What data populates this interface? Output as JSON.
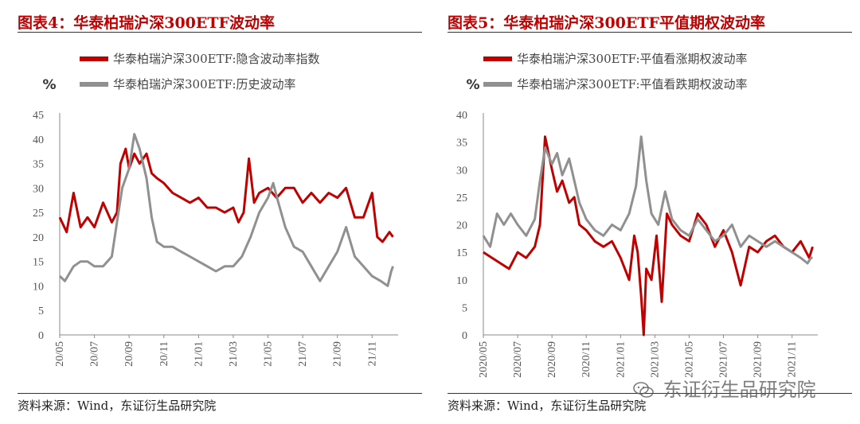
{
  "figures": [
    {
      "title": "图表4：华泰柏瑞沪深300ETF波动率",
      "source": "资料来源：Wind，东证衍生品研究院"
    },
    {
      "title": "图表5：华泰柏瑞沪深300ETF平值期权波动率",
      "source": "资料来源：Wind，东证衍生品研究院"
    }
  ],
  "watermark": {
    "text": "东证衍生品研究院",
    "icon": "wechat-icon"
  },
  "chart_data": [
    {
      "type": "line",
      "title": "图表4：华泰柏瑞沪深300ETF波动率",
      "ylabel": "%",
      "ylim": [
        0,
        45
      ],
      "yticks": [
        "0",
        "5",
        "10",
        "15",
        "20",
        "25",
        "30",
        "35",
        "40",
        "45"
      ],
      "xticks": [
        "20/05",
        "20/07",
        "20/09",
        "20/11",
        "21/01",
        "21/03",
        "21/05",
        "21/07",
        "21/09",
        "21/11"
      ],
      "xrange": [
        0,
        19.5
      ],
      "legend_position": "top",
      "series": [
        {
          "name": "华泰柏瑞沪深300ETF:隐含波动率指数",
          "color": "#c00000",
          "points": [
            [
              0,
              24
            ],
            [
              0.4,
              21
            ],
            [
              0.8,
              29
            ],
            [
              1.2,
              22
            ],
            [
              1.6,
              24
            ],
            [
              2,
              22
            ],
            [
              2.5,
              27
            ],
            [
              3,
              23
            ],
            [
              3.3,
              25
            ],
            [
              3.5,
              35
            ],
            [
              3.8,
              38
            ],
            [
              4,
              34
            ],
            [
              4.3,
              37
            ],
            [
              4.6,
              35
            ],
            [
              5,
              37
            ],
            [
              5.3,
              33
            ],
            [
              5.6,
              32
            ],
            [
              6,
              31
            ],
            [
              6.5,
              29
            ],
            [
              7,
              28
            ],
            [
              7.5,
              27
            ],
            [
              8,
              28
            ],
            [
              8.5,
              26
            ],
            [
              9,
              26
            ],
            [
              9.5,
              25
            ],
            [
              10,
              26
            ],
            [
              10.3,
              23
            ],
            [
              10.6,
              25
            ],
            [
              10.9,
              36
            ],
            [
              11.2,
              27
            ],
            [
              11.5,
              29
            ],
            [
              12,
              30
            ],
            [
              12.5,
              28
            ],
            [
              13,
              30
            ],
            [
              13.5,
              30
            ],
            [
              14,
              27
            ],
            [
              14.5,
              29
            ],
            [
              15,
              27
            ],
            [
              15.5,
              29
            ],
            [
              16,
              28
            ],
            [
              16.5,
              30
            ],
            [
              17,
              24
            ],
            [
              17.5,
              24
            ],
            [
              18,
              29
            ],
            [
              18.3,
              20
            ],
            [
              18.6,
              19
            ],
            [
              19,
              21
            ],
            [
              19.2,
              20
            ]
          ]
        },
        {
          "name": "华泰柏瑞沪深300ETF:历史波动率",
          "color": "#909090",
          "points": [
            [
              0,
              12
            ],
            [
              0.3,
              11
            ],
            [
              0.8,
              14
            ],
            [
              1.2,
              15
            ],
            [
              1.6,
              15
            ],
            [
              2,
              14
            ],
            [
              2.5,
              14
            ],
            [
              3,
              16
            ],
            [
              3.3,
              23
            ],
            [
              3.6,
              30
            ],
            [
              4,
              34
            ],
            [
              4.3,
              41
            ],
            [
              4.6,
              38
            ],
            [
              5,
              32
            ],
            [
              5.3,
              24
            ],
            [
              5.6,
              19
            ],
            [
              6,
              18
            ],
            [
              6.5,
              18
            ],
            [
              7,
              17
            ],
            [
              7.5,
              16
            ],
            [
              8,
              15
            ],
            [
              8.5,
              14
            ],
            [
              9,
              13
            ],
            [
              9.5,
              14
            ],
            [
              10,
              14
            ],
            [
              10.5,
              16
            ],
            [
              11,
              20
            ],
            [
              11.5,
              25
            ],
            [
              12,
              28
            ],
            [
              12.3,
              31
            ],
            [
              12.6,
              27
            ],
            [
              13,
              22
            ],
            [
              13.5,
              18
            ],
            [
              14,
              17
            ],
            [
              14.5,
              14
            ],
            [
              15,
              11
            ],
            [
              15.5,
              14
            ],
            [
              16,
              17
            ],
            [
              16.5,
              22
            ],
            [
              17,
              16
            ],
            [
              17.5,
              14
            ],
            [
              18,
              12
            ],
            [
              18.5,
              11
            ],
            [
              18.9,
              10
            ],
            [
              19.1,
              13
            ],
            [
              19.2,
              14
            ]
          ]
        }
      ]
    },
    {
      "type": "line",
      "title": "图表5：华泰柏瑞沪深300ETF平值期权波动率",
      "ylabel": "%",
      "ylim": [
        0,
        40
      ],
      "yticks": [
        "0",
        "5",
        "10",
        "15",
        "20",
        "25",
        "30",
        "35",
        "40"
      ],
      "xticks": [
        "2020/05",
        "2020/07",
        "2020/09",
        "2020/11",
        "2021/01",
        "2021/03",
        "2021/05",
        "2021/07",
        "2021/09",
        "2021/11"
      ],
      "xrange": [
        0,
        19.5
      ],
      "legend_position": "top",
      "series": [
        {
          "name": "华泰柏瑞沪深300ETF:平值看涨期权波动率",
          "color": "#c00000",
          "points": [
            [
              0,
              15
            ],
            [
              0.5,
              14
            ],
            [
              1,
              13
            ],
            [
              1.5,
              12
            ],
            [
              2,
              15
            ],
            [
              2.5,
              14
            ],
            [
              3,
              16
            ],
            [
              3.3,
              20
            ],
            [
              3.6,
              36
            ],
            [
              4,
              30
            ],
            [
              4.3,
              26
            ],
            [
              4.6,
              28
            ],
            [
              5,
              24
            ],
            [
              5.3,
              25
            ],
            [
              5.6,
              20
            ],
            [
              6,
              19
            ],
            [
              6.5,
              17
            ],
            [
              7,
              16
            ],
            [
              7.5,
              17
            ],
            [
              8,
              14
            ],
            [
              8.5,
              10
            ],
            [
              8.8,
              18
            ],
            [
              9,
              15
            ],
            [
              9.2,
              7
            ],
            [
              9.35,
              0
            ],
            [
              9.5,
              12
            ],
            [
              9.8,
              10
            ],
            [
              10.1,
              18
            ],
            [
              10.4,
              6
            ],
            [
              10.7,
              22
            ],
            [
              11,
              20
            ],
            [
              11.5,
              18
            ],
            [
              12,
              17
            ],
            [
              12.5,
              22
            ],
            [
              13,
              20
            ],
            [
              13.5,
              16
            ],
            [
              14,
              19
            ],
            [
              14.5,
              15
            ],
            [
              15,
              9
            ],
            [
              15.5,
              16
            ],
            [
              16,
              15
            ],
            [
              16.5,
              17
            ],
            [
              17,
              18
            ],
            [
              17.5,
              16
            ],
            [
              18,
              15
            ],
            [
              18.5,
              17
            ],
            [
              19,
              14
            ],
            [
              19.2,
              16
            ]
          ]
        },
        {
          "name": "华泰柏瑞沪深300ETF:平值看跌期权波动率",
          "color": "#909090",
          "points": [
            [
              0,
              18
            ],
            [
              0.4,
              16
            ],
            [
              0.8,
              22
            ],
            [
              1.2,
              20
            ],
            [
              1.6,
              22
            ],
            [
              2,
              20
            ],
            [
              2.5,
              18
            ],
            [
              3,
              21
            ],
            [
              3.3,
              28
            ],
            [
              3.6,
              34
            ],
            [
              4,
              31
            ],
            [
              4.3,
              33
            ],
            [
              4.6,
              29
            ],
            [
              5,
              32
            ],
            [
              5.3,
              28
            ],
            [
              5.6,
              24
            ],
            [
              6,
              21
            ],
            [
              6.5,
              19
            ],
            [
              7,
              18
            ],
            [
              7.5,
              20
            ],
            [
              8,
              19
            ],
            [
              8.5,
              22
            ],
            [
              8.9,
              27
            ],
            [
              9.2,
              36
            ],
            [
              9.5,
              28
            ],
            [
              9.8,
              22
            ],
            [
              10.2,
              20
            ],
            [
              10.6,
              26
            ],
            [
              11,
              21
            ],
            [
              11.5,
              19
            ],
            [
              12,
              18
            ],
            [
              12.5,
              21
            ],
            [
              13,
              19
            ],
            [
              13.5,
              17
            ],
            [
              14,
              18
            ],
            [
              14.5,
              20
            ],
            [
              15,
              16
            ],
            [
              15.5,
              18
            ],
            [
              16,
              17
            ],
            [
              16.5,
              16
            ],
            [
              17,
              17
            ],
            [
              17.5,
              16
            ],
            [
              18,
              15
            ],
            [
              18.5,
              14
            ],
            [
              18.9,
              13
            ],
            [
              19.1,
              14
            ],
            [
              19.2,
              14
            ]
          ]
        }
      ]
    }
  ]
}
